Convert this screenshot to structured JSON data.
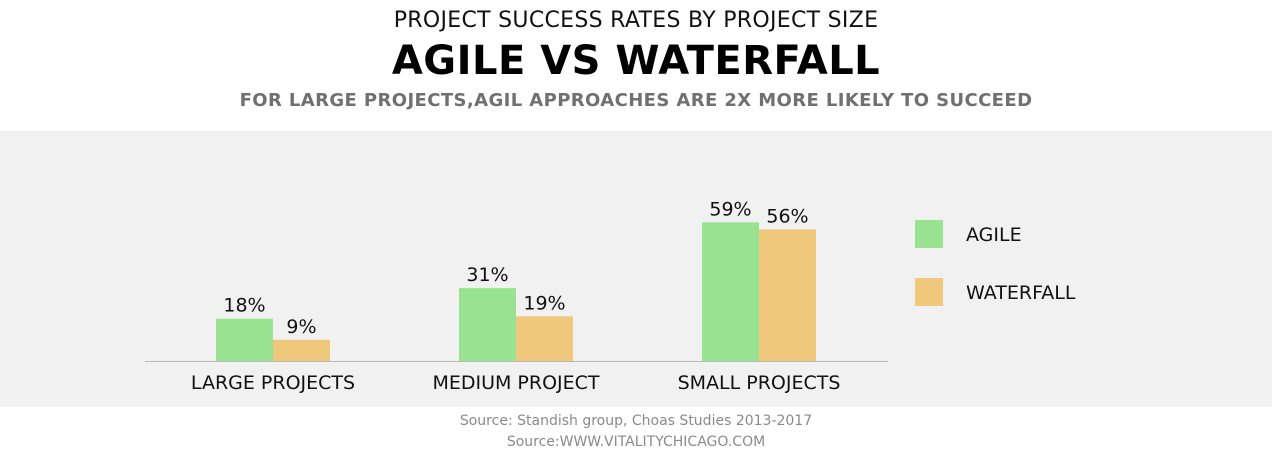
{
  "header": {
    "title": "PROJECT SUCCESS RATES BY PROJECT SIZE",
    "headline": "AGILE VS WATERFALL",
    "subtitle": "FOR LARGE PROJECTS,AGIL APPROACHES ARE 2X MORE LIKELY TO SUCCEED"
  },
  "footer": {
    "source1": "Source: Standish group, Choas Studies 2013-2017",
    "source2": "Source:WWW.VITALITYCHICAGO.COM"
  },
  "colors": {
    "agile": "#98e291",
    "waterfall": "#efc87c",
    "panel": "#f0f1f0"
  },
  "chart_data": {
    "type": "bar",
    "title": "AGILE VS WATERFALL",
    "categories": [
      "LARGE PROJECTS",
      "MEDIUM PROJECT",
      "SMALL PROJECTS"
    ],
    "series": [
      {
        "name": "AGILE",
        "values": [
          18,
          31,
          59
        ],
        "labels": [
          "18%",
          "31%",
          "59%"
        ]
      },
      {
        "name": "WATERFALL",
        "values": [
          9,
          19,
          56
        ],
        "labels": [
          "9%",
          "19%",
          "56%"
        ]
      }
    ],
    "unit": "%",
    "grid": false,
    "legend": "right"
  }
}
